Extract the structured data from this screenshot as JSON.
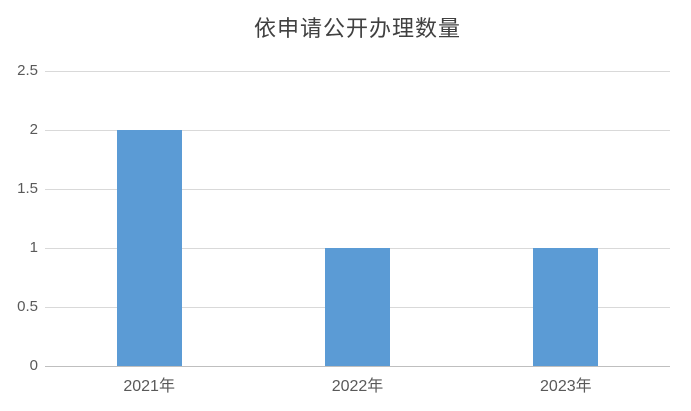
{
  "chart_data": {
    "type": "bar",
    "title": "依申请公开办理数量",
    "categories": [
      "2021年",
      "2022年",
      "2023年"
    ],
    "values": [
      2,
      1,
      1
    ],
    "xlabel": "",
    "ylabel": "",
    "ylim": [
      0,
      2.5
    ],
    "yticks": [
      "0",
      "0.5",
      "1",
      "1.5",
      "2",
      "2.5"
    ],
    "ytick_values": [
      0,
      0.5,
      1,
      1.5,
      2,
      2.5
    ],
    "grid": true,
    "legend": false,
    "colors": {
      "bar": "#5b9bd5",
      "title_text": "#404040",
      "axis_text": "#595959",
      "gridline": "#d9d9d9",
      "axis_line": "#bfbfbf",
      "background": "#ffffff"
    }
  }
}
